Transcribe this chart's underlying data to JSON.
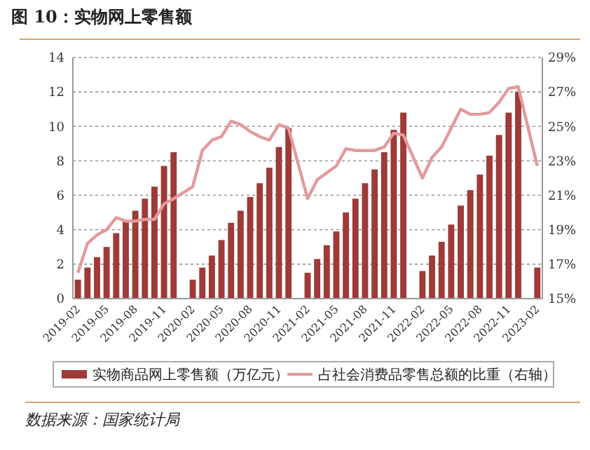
{
  "chart_data": {
    "type": "bar",
    "title": "图 10：实物网上零售额",
    "categories": [
      "2019-02",
      null,
      null,
      "2019-05",
      null,
      null,
      "2019-08",
      null,
      null,
      "2019-11",
      null,
      null,
      "2020-02",
      null,
      null,
      "2020-05",
      null,
      null,
      "2020-08",
      null,
      null,
      "2020-11",
      null,
      null,
      "2021-02",
      null,
      null,
      "2021-05",
      null,
      null,
      "2021-08",
      null,
      null,
      "2021-11",
      null,
      null,
      "2022-02",
      null,
      null,
      "2022-05",
      null,
      null,
      "2022-08",
      null,
      null,
      "2022-11",
      null,
      null,
      "2023-02"
    ],
    "series": [
      {
        "name": "实物商品网上零售额（万亿元）",
        "color": "#9e3a38",
        "values": [
          1.1,
          1.8,
          2.4,
          3.0,
          3.8,
          4.5,
          5.1,
          5.8,
          6.5,
          7.7,
          8.5,
          null,
          1.1,
          1.8,
          2.5,
          3.4,
          4.4,
          5.1,
          5.9,
          6.7,
          7.6,
          8.8,
          9.9,
          null,
          1.5,
          2.3,
          3.1,
          3.9,
          5.0,
          5.8,
          6.7,
          7.5,
          8.5,
          9.8,
          10.8,
          null,
          1.6,
          2.5,
          3.3,
          4.3,
          5.4,
          6.3,
          7.2,
          8.3,
          9.5,
          10.8,
          12.0,
          null,
          1.8
        ]
      },
      {
        "name": "占社会消费品零售总额的比重（右轴）",
        "type": "line",
        "axis": "y2",
        "color": "#e39a9c",
        "values": [
          16.5,
          18.2,
          18.7,
          19.0,
          19.7,
          19.5,
          19.5,
          19.6,
          19.6,
          20.5,
          20.8,
          null,
          21.5,
          23.6,
          24.2,
          24.4,
          25.3,
          25.1,
          24.7,
          24.4,
          24.2,
          25.1,
          24.9,
          null,
          20.8,
          21.9,
          22.3,
          22.7,
          23.7,
          23.6,
          23.6,
          23.6,
          23.8,
          24.6,
          24.5,
          null,
          22.0,
          23.2,
          23.8,
          24.9,
          26.0,
          25.7,
          25.7,
          25.8,
          26.4,
          27.2,
          27.3,
          null,
          22.7
        ]
      }
    ],
    "ylim": [
      0,
      14
    ],
    "yticks": [
      0,
      2,
      4,
      6,
      8,
      10,
      12,
      14
    ],
    "y2lim": [
      15,
      29
    ],
    "y2ticks": [
      {
        "value": 15,
        "label": "15%"
      },
      {
        "value": 17,
        "label": "17%"
      },
      {
        "value": 19,
        "label": "19%"
      },
      {
        "value": 21,
        "label": "21%"
      },
      {
        "value": 23,
        "label": "23%"
      },
      {
        "value": 25,
        "label": "25%"
      },
      {
        "value": 27,
        "label": "27%"
      },
      {
        "value": 29,
        "label": "29%"
      }
    ],
    "grid": "y",
    "legend": "bottom",
    "line_style": "solid",
    "marker": "none",
    "annotations": [
      "数据来源：国家统计局"
    ]
  }
}
